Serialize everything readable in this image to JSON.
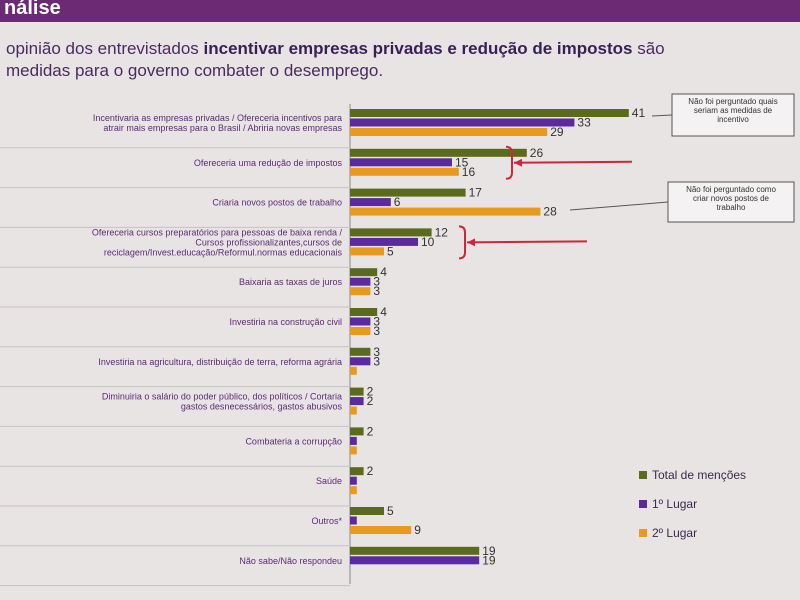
{
  "header": {
    "title": "nálise"
  },
  "subtitle": {
    "part1": "opinião dos entrevistados ",
    "bold": "incentivar empresas privadas e redução de impostos",
    "part2": " são",
    "line2": "medidas para o governo combater o desemprego."
  },
  "colors": {
    "total": "#5a6b1e",
    "first": "#5b2a9e",
    "second": "#e89a1e",
    "arrow": "#d0253a"
  },
  "notes": [
    {
      "lines": [
        "Não foi perguntado quais",
        "seriam as medidas de",
        "incentivo"
      ]
    },
    {
      "lines": [
        "Não foi perguntado como",
        "criar novos postos de",
        "trabalho"
      ]
    }
  ],
  "chart_data": {
    "type": "bar",
    "orientation": "horizontal",
    "categories": [
      [
        "Incentivaria as empresas privadas / Ofereceria incentivos para",
        "atrair mais empresas para o Brasil / Abriria novas empresas"
      ],
      [
        "Ofereceria uma redução de impostos"
      ],
      [
        "Criaria novos postos de trabalho"
      ],
      [
        "Ofereceria cursos preparatórios para pessoas de baixa renda /",
        "Cursos profissionalizantes,cursos de",
        "reciclagem/Invest.educação/Reformul.normas educacionais"
      ],
      [
        "Baixaria as taxas de juros"
      ],
      [
        "Investiria na construção civil"
      ],
      [
        "Investiria na agricultura, distribuição de terra, reforma agrária"
      ],
      [
        "Diminuiria o salário do poder público, dos políticos / Cortaria",
        "gastos desnecessários, gastos abusivos"
      ],
      [
        "Combateria a corrupção"
      ],
      [
        "Saúde"
      ],
      [
        "Outros*"
      ],
      [
        "Não sabe/Não respondeu"
      ]
    ],
    "series": [
      {
        "name": "Total de menções",
        "values": [
          41,
          26,
          17,
          12,
          4,
          4,
          3,
          2,
          2,
          2,
          5,
          19
        ]
      },
      {
        "name": "1º Lugar",
        "values": [
          33,
          15,
          6,
          10,
          3,
          3,
          3,
          2,
          1,
          1,
          1,
          19
        ]
      },
      {
        "name": "2º Lugar",
        "values": [
          29,
          16,
          28,
          5,
          3,
          3,
          1,
          1,
          1,
          1,
          9,
          null
        ]
      }
    ],
    "data_labels": [
      [
        "41",
        "33",
        "29"
      ],
      [
        "26",
        "15",
        "16"
      ],
      [
        "17",
        "6",
        "28"
      ],
      [
        "12",
        "10",
        "5"
      ],
      [
        "4",
        "3",
        "3"
      ],
      [
        "4",
        "3",
        "3"
      ],
      [
        "3",
        "3",
        ""
      ],
      [
        "2",
        "2",
        ""
      ],
      [
        "2",
        "",
        ""
      ],
      [
        "2",
        "",
        ""
      ],
      [
        "5",
        "",
        "9"
      ],
      [
        "19",
        "19",
        ""
      ]
    ],
    "xlim": [
      0,
      45
    ],
    "legend_position": "right",
    "grid": false
  }
}
